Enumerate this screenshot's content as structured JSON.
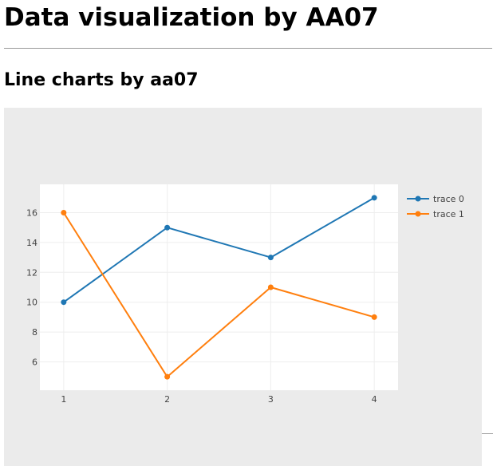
{
  "page": {
    "title": "Data visualization by AA07",
    "section_title": "Line charts by aa07"
  },
  "colors": {
    "plot_container_bg": "#ebebeb",
    "plot_area_bg": "#ffffff",
    "grid": "#eeeeee"
  },
  "chart_data": {
    "type": "line",
    "title": "",
    "xlabel": "",
    "ylabel": "",
    "xlim": [
      0.77,
      4.23
    ],
    "ylim": [
      4.1,
      17.9
    ],
    "x_ticks": [
      1,
      2,
      3,
      4
    ],
    "y_ticks": [
      6,
      8,
      10,
      12,
      14,
      16
    ],
    "grid": true,
    "legend_position": "top-right",
    "series": [
      {
        "name": "trace 0",
        "color": "#1f77b4",
        "x": [
          1,
          2,
          3,
          4
        ],
        "y": [
          10,
          15,
          13,
          17
        ]
      },
      {
        "name": "trace 1",
        "color": "#ff7f0e",
        "x": [
          1,
          2,
          3,
          4
        ],
        "y": [
          16,
          5,
          11,
          9
        ]
      }
    ]
  }
}
